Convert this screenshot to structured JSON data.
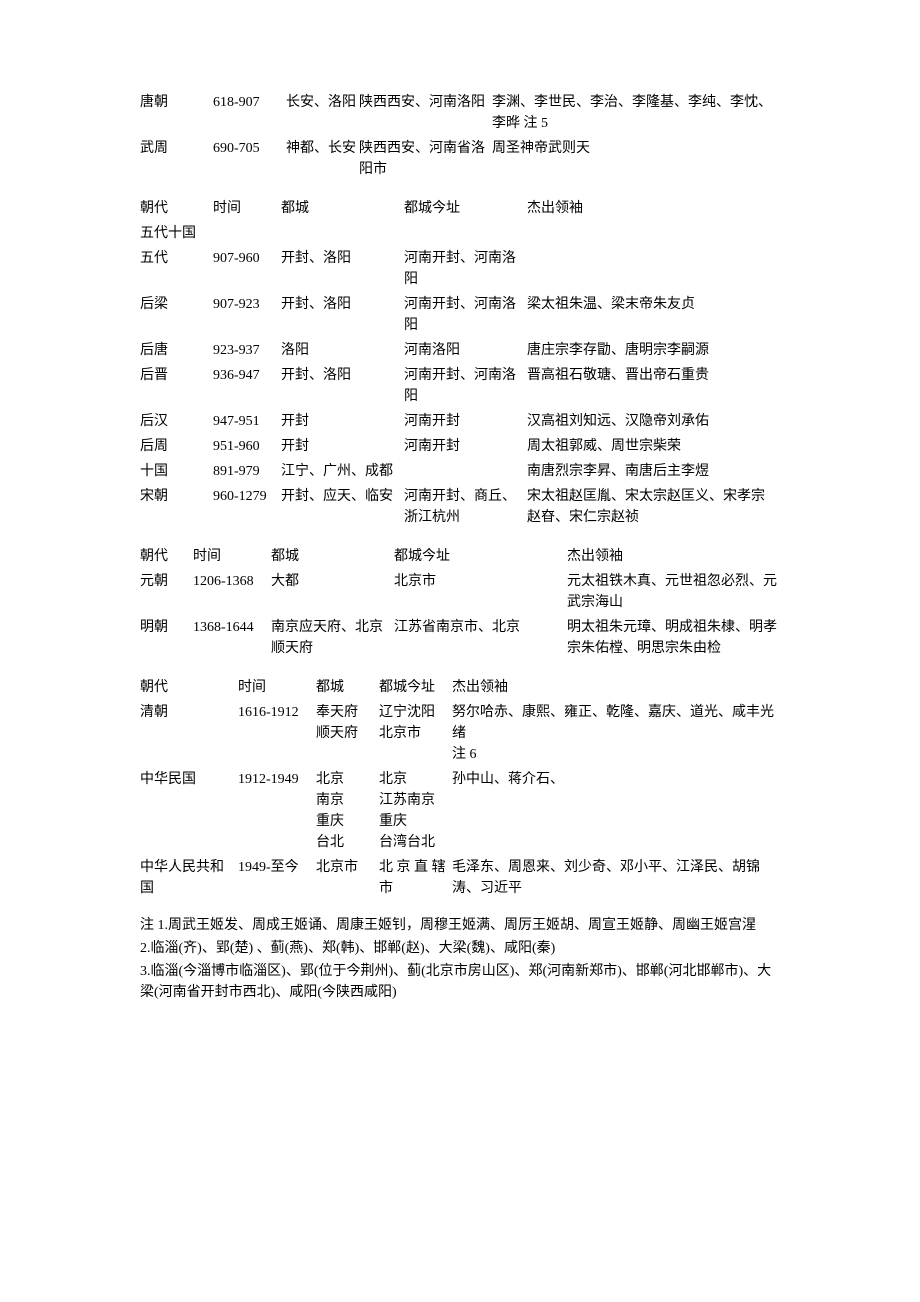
{
  "table1": {
    "rows": [
      {
        "dynasty": "唐朝",
        "period": "618-907",
        "capital": "长安、洛阳",
        "capital_today": "陕西西安、河南洛阳",
        "leaders": "李渊、李世民、李治、李隆基、李纯、李忱、李晔 注 5"
      },
      {
        "dynasty": "武周",
        "period": "690-705",
        "capital": "神都、长安",
        "capital_today": "陕西西安、河南省洛阳市",
        "leaders": "周圣神帝武则天"
      }
    ]
  },
  "table2": {
    "header": {
      "c1": "朝代",
      "c2": "时间",
      "c3": "都城",
      "c4": "都城今址",
      "c5": "杰出领袖"
    },
    "subhead": "五代十国",
    "rows": [
      {
        "dynasty": "五代",
        "period": "907-960",
        "capital": "开封、洛阳",
        "capital_today": "河南开封、河南洛阳",
        "leaders": ""
      },
      {
        "dynasty": "后梁",
        "period": "907-923",
        "capital": "开封、洛阳",
        "capital_today": "河南开封、河南洛阳",
        "leaders": "梁太祖朱温、梁末帝朱友贞"
      },
      {
        "dynasty": "后唐",
        "period": "923-937",
        "capital": "洛阳",
        "capital_today": "河南洛阳",
        "leaders": "唐庄宗李存勖、唐明宗李嗣源"
      },
      {
        "dynasty": "后晋",
        "period": "936-947",
        "capital": "开封、洛阳",
        "capital_today": "河南开封、河南洛阳",
        "leaders": "晋高祖石敬瑭、晋出帝石重贵"
      },
      {
        "dynasty": "后汉",
        "period": "947-951",
        "capital": "开封",
        "capital_today": "河南开封",
        "leaders": "汉高祖刘知远、汉隐帝刘承佑"
      },
      {
        "dynasty": "后周",
        "period": "951-960",
        "capital": "开封",
        "capital_today": "河南开封",
        "leaders": "周太祖郭威、周世宗柴荣"
      },
      {
        "dynasty": "十国",
        "period": "891-979",
        "capital": "江宁、广州、成都",
        "capital_today": "",
        "leaders": "南唐烈宗李昇、南唐后主李煜"
      },
      {
        "dynasty": "宋朝",
        "period": "960-1279",
        "capital": "开封、应天、临安",
        "capital_today": "河南开封、商丘、浙江杭州",
        "leaders": "宋太祖赵匡胤、宋太宗赵匡义、宋孝宗赵昚、宋仁宗赵祯"
      }
    ]
  },
  "table3": {
    "header": {
      "c1": "朝代",
      "c2": "时间",
      "c3": "都城",
      "c4": "都城今址",
      "c5": "杰出领袖"
    },
    "rows": [
      {
        "dynasty": "元朝",
        "period": "1206-1368",
        "capital": "大都",
        "capital_today": "北京市",
        "leaders": "元太祖铁木真、元世祖忽必烈、元武宗海山"
      },
      {
        "dynasty": "明朝",
        "period": "1368-1644",
        "capital": "南京应天府、北京顺天府",
        "capital_today": "江苏省南京市、北京",
        "leaders": "明太祖朱元璋、明成祖朱棣、明孝宗朱佑樘、明思宗朱由检"
      }
    ]
  },
  "table4": {
    "header": {
      "c1": "朝代",
      "c2": "时间",
      "c3": "都城",
      "c4": "都城今址",
      "c5": "杰出领袖"
    },
    "rows": [
      {
        "dynasty": "清朝",
        "period": "1616-1912",
        "capital": "奉天府\n顺天府",
        "capital_today": "辽宁沈阳\n北京市",
        "leaders": "努尔哈赤、康熙、雍正、乾隆、嘉庆、道光、咸丰光绪\n注 6"
      },
      {
        "dynasty": "中华民国",
        "period": "1912-1949",
        "capital": "北京\n南京\n重庆\n台北",
        "capital_today": "北京\n江苏南京\n重庆\n台湾台北",
        "leaders": "孙中山、蒋介石、"
      },
      {
        "dynasty": "中华人民共和国",
        "period": "1949-至今",
        "capital": "北京市",
        "capital_today": "北 京 直 辖市",
        "leaders": "毛泽东、周恩来、刘少奇、邓小平、江泽民、胡锦涛、习近平"
      }
    ]
  },
  "notes": [
    "注 1.周武王姬发、周成王姬诵、周康王姬钊，周穆王姬满、周厉王姬胡、周宣王姬静、周幽王姬宫湦",
    "2.临淄(齐)、郢(楚) 、蓟(燕)、郑(韩)、邯郸(赵)、大梁(魏)、咸阳(秦)",
    "3.临淄(今淄博市临淄区)、郢(位于今荆州)、蓟(北京市房山区)、郑(河南新郑市)、邯郸(河北邯郸市)、大梁(河南省开封市西北)、咸阳(今陕西咸阳)"
  ]
}
